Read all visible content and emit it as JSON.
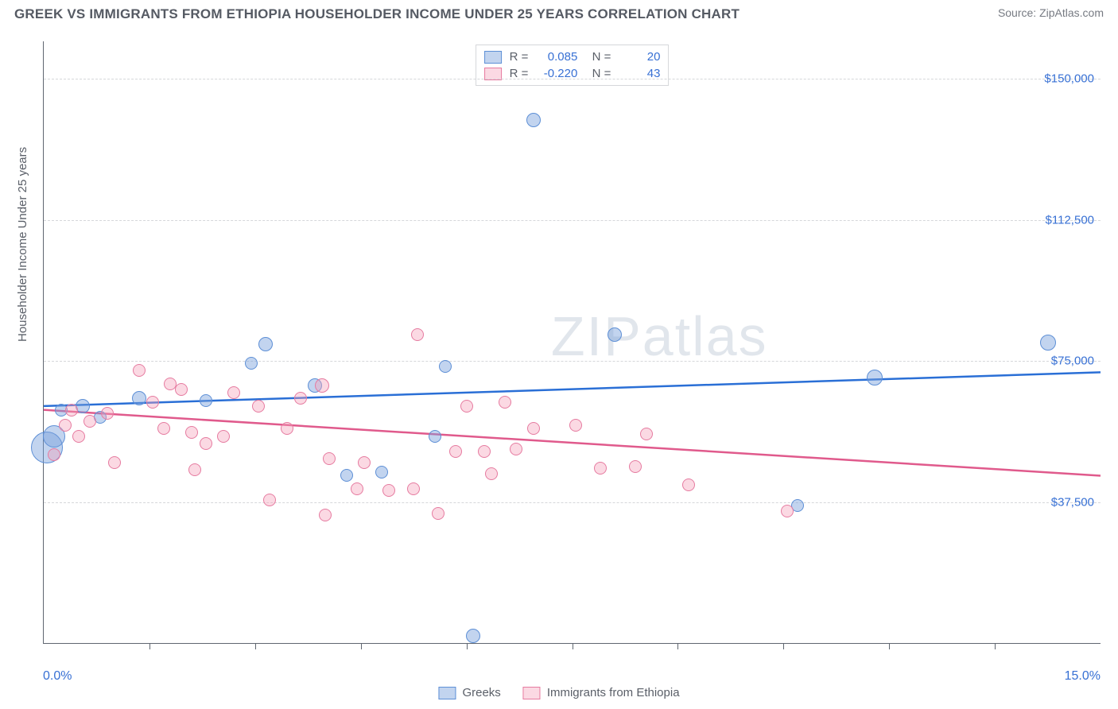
{
  "title": "GREEK VS IMMIGRANTS FROM ETHIOPIA HOUSEHOLDER INCOME UNDER 25 YEARS CORRELATION CHART",
  "source": "Source: ZipAtlas.com",
  "watermark": "ZIPatlas",
  "ylabel": "Householder Income Under 25 years",
  "chart": {
    "type": "scatter",
    "xlim": [
      0,
      15
    ],
    "ylim": [
      0,
      160000
    ],
    "x_start_label": "0.0%",
    "x_end_label": "15.0%",
    "y_ticks": [
      37500,
      75000,
      112500,
      150000
    ],
    "y_tick_labels": [
      "$37,500",
      "$75,000",
      "$112,500",
      "$150,000"
    ],
    "x_tick_positions": [
      1.5,
      3.0,
      4.5,
      6.0,
      7.5,
      9.0,
      10.5,
      12.0,
      13.5
    ],
    "background_color": "#ffffff",
    "grid_color": "#d5d7da",
    "axis_color": "#5f6670",
    "series": [
      {
        "name": "Greeks",
        "fill": "rgba(120,160,220,0.45)",
        "stroke": "#5d8fd6",
        "trend_color": "#2a6fd6",
        "r_value": "0.085",
        "n_value": "20",
        "trend": {
          "y_at_x0": 63000,
          "y_at_xmax": 72000
        },
        "points": [
          {
            "x": 0.05,
            "y": 52000,
            "r": 20
          },
          {
            "x": 0.15,
            "y": 55000,
            "r": 14
          },
          {
            "x": 0.25,
            "y": 62000,
            "r": 8
          },
          {
            "x": 0.55,
            "y": 63000,
            "r": 9
          },
          {
            "x": 0.8,
            "y": 60000,
            "r": 8
          },
          {
            "x": 1.35,
            "y": 65000,
            "r": 9
          },
          {
            "x": 2.3,
            "y": 64500,
            "r": 8
          },
          {
            "x": 2.95,
            "y": 74500,
            "r": 8
          },
          {
            "x": 3.15,
            "y": 79500,
            "r": 9
          },
          {
            "x": 3.85,
            "y": 68500,
            "r": 9
          },
          {
            "x": 4.3,
            "y": 44500,
            "r": 8
          },
          {
            "x": 4.8,
            "y": 45500,
            "r": 8
          },
          {
            "x": 5.55,
            "y": 55000,
            "r": 8
          },
          {
            "x": 5.7,
            "y": 73500,
            "r": 8
          },
          {
            "x": 6.1,
            "y": 2000,
            "r": 9
          },
          {
            "x": 6.95,
            "y": 139000,
            "r": 9
          },
          {
            "x": 8.1,
            "y": 82000,
            "r": 9
          },
          {
            "x": 10.7,
            "y": 36500,
            "r": 8
          },
          {
            "x": 11.8,
            "y": 70500,
            "r": 10
          },
          {
            "x": 14.25,
            "y": 80000,
            "r": 10
          }
        ]
      },
      {
        "name": "Immigrants from Ethiopia",
        "fill": "rgba(245,160,185,0.40)",
        "stroke": "#e67ba0",
        "trend_color": "#e05a8c",
        "r_value": "-0.220",
        "n_value": "43",
        "trend": {
          "y_at_x0": 62000,
          "y_at_xmax": 44500
        },
        "points": [
          {
            "x": 0.15,
            "y": 50000,
            "r": 8
          },
          {
            "x": 0.3,
            "y": 58000,
            "r": 8
          },
          {
            "x": 0.4,
            "y": 62000,
            "r": 8
          },
          {
            "x": 0.5,
            "y": 55000,
            "r": 8
          },
          {
            "x": 0.65,
            "y": 59000,
            "r": 8
          },
          {
            "x": 0.9,
            "y": 61000,
            "r": 8
          },
          {
            "x": 1.0,
            "y": 48000,
            "r": 8
          },
          {
            "x": 1.35,
            "y": 72500,
            "r": 8
          },
          {
            "x": 1.55,
            "y": 64000,
            "r": 8
          },
          {
            "x": 1.7,
            "y": 57000,
            "r": 8
          },
          {
            "x": 1.8,
            "y": 69000,
            "r": 8
          },
          {
            "x": 1.95,
            "y": 67500,
            "r": 8
          },
          {
            "x": 2.1,
            "y": 56000,
            "r": 8
          },
          {
            "x": 2.15,
            "y": 46000,
            "r": 8
          },
          {
            "x": 2.3,
            "y": 53000,
            "r": 8
          },
          {
            "x": 2.55,
            "y": 55000,
            "r": 8
          },
          {
            "x": 2.7,
            "y": 66500,
            "r": 8
          },
          {
            "x": 3.05,
            "y": 63000,
            "r": 8
          },
          {
            "x": 3.2,
            "y": 38000,
            "r": 8
          },
          {
            "x": 3.45,
            "y": 57000,
            "r": 8
          },
          {
            "x": 3.65,
            "y": 65000,
            "r": 8
          },
          {
            "x": 3.95,
            "y": 68500,
            "r": 9
          },
          {
            "x": 4.0,
            "y": 34000,
            "r": 8
          },
          {
            "x": 4.05,
            "y": 49000,
            "r": 8
          },
          {
            "x": 4.45,
            "y": 41000,
            "r": 8
          },
          {
            "x": 4.55,
            "y": 48000,
            "r": 8
          },
          {
            "x": 4.9,
            "y": 40500,
            "r": 8
          },
          {
            "x": 5.25,
            "y": 41000,
            "r": 8
          },
          {
            "x": 5.3,
            "y": 82000,
            "r": 8
          },
          {
            "x": 5.6,
            "y": 34500,
            "r": 8
          },
          {
            "x": 5.85,
            "y": 51000,
            "r": 8
          },
          {
            "x": 6.0,
            "y": 63000,
            "r": 8
          },
          {
            "x": 6.25,
            "y": 51000,
            "r": 8
          },
          {
            "x": 6.35,
            "y": 45000,
            "r": 8
          },
          {
            "x": 6.55,
            "y": 64000,
            "r": 8
          },
          {
            "x": 6.7,
            "y": 51500,
            "r": 8
          },
          {
            "x": 6.95,
            "y": 57000,
            "r": 8
          },
          {
            "x": 7.55,
            "y": 58000,
            "r": 8
          },
          {
            "x": 7.9,
            "y": 46500,
            "r": 8
          },
          {
            "x": 8.4,
            "y": 47000,
            "r": 8
          },
          {
            "x": 8.55,
            "y": 55500,
            "r": 8
          },
          {
            "x": 9.15,
            "y": 42000,
            "r": 8
          },
          {
            "x": 10.55,
            "y": 35000,
            "r": 8
          }
        ]
      }
    ]
  },
  "bottom_legend": [
    "Greeks",
    "Immigrants from Ethiopia"
  ]
}
